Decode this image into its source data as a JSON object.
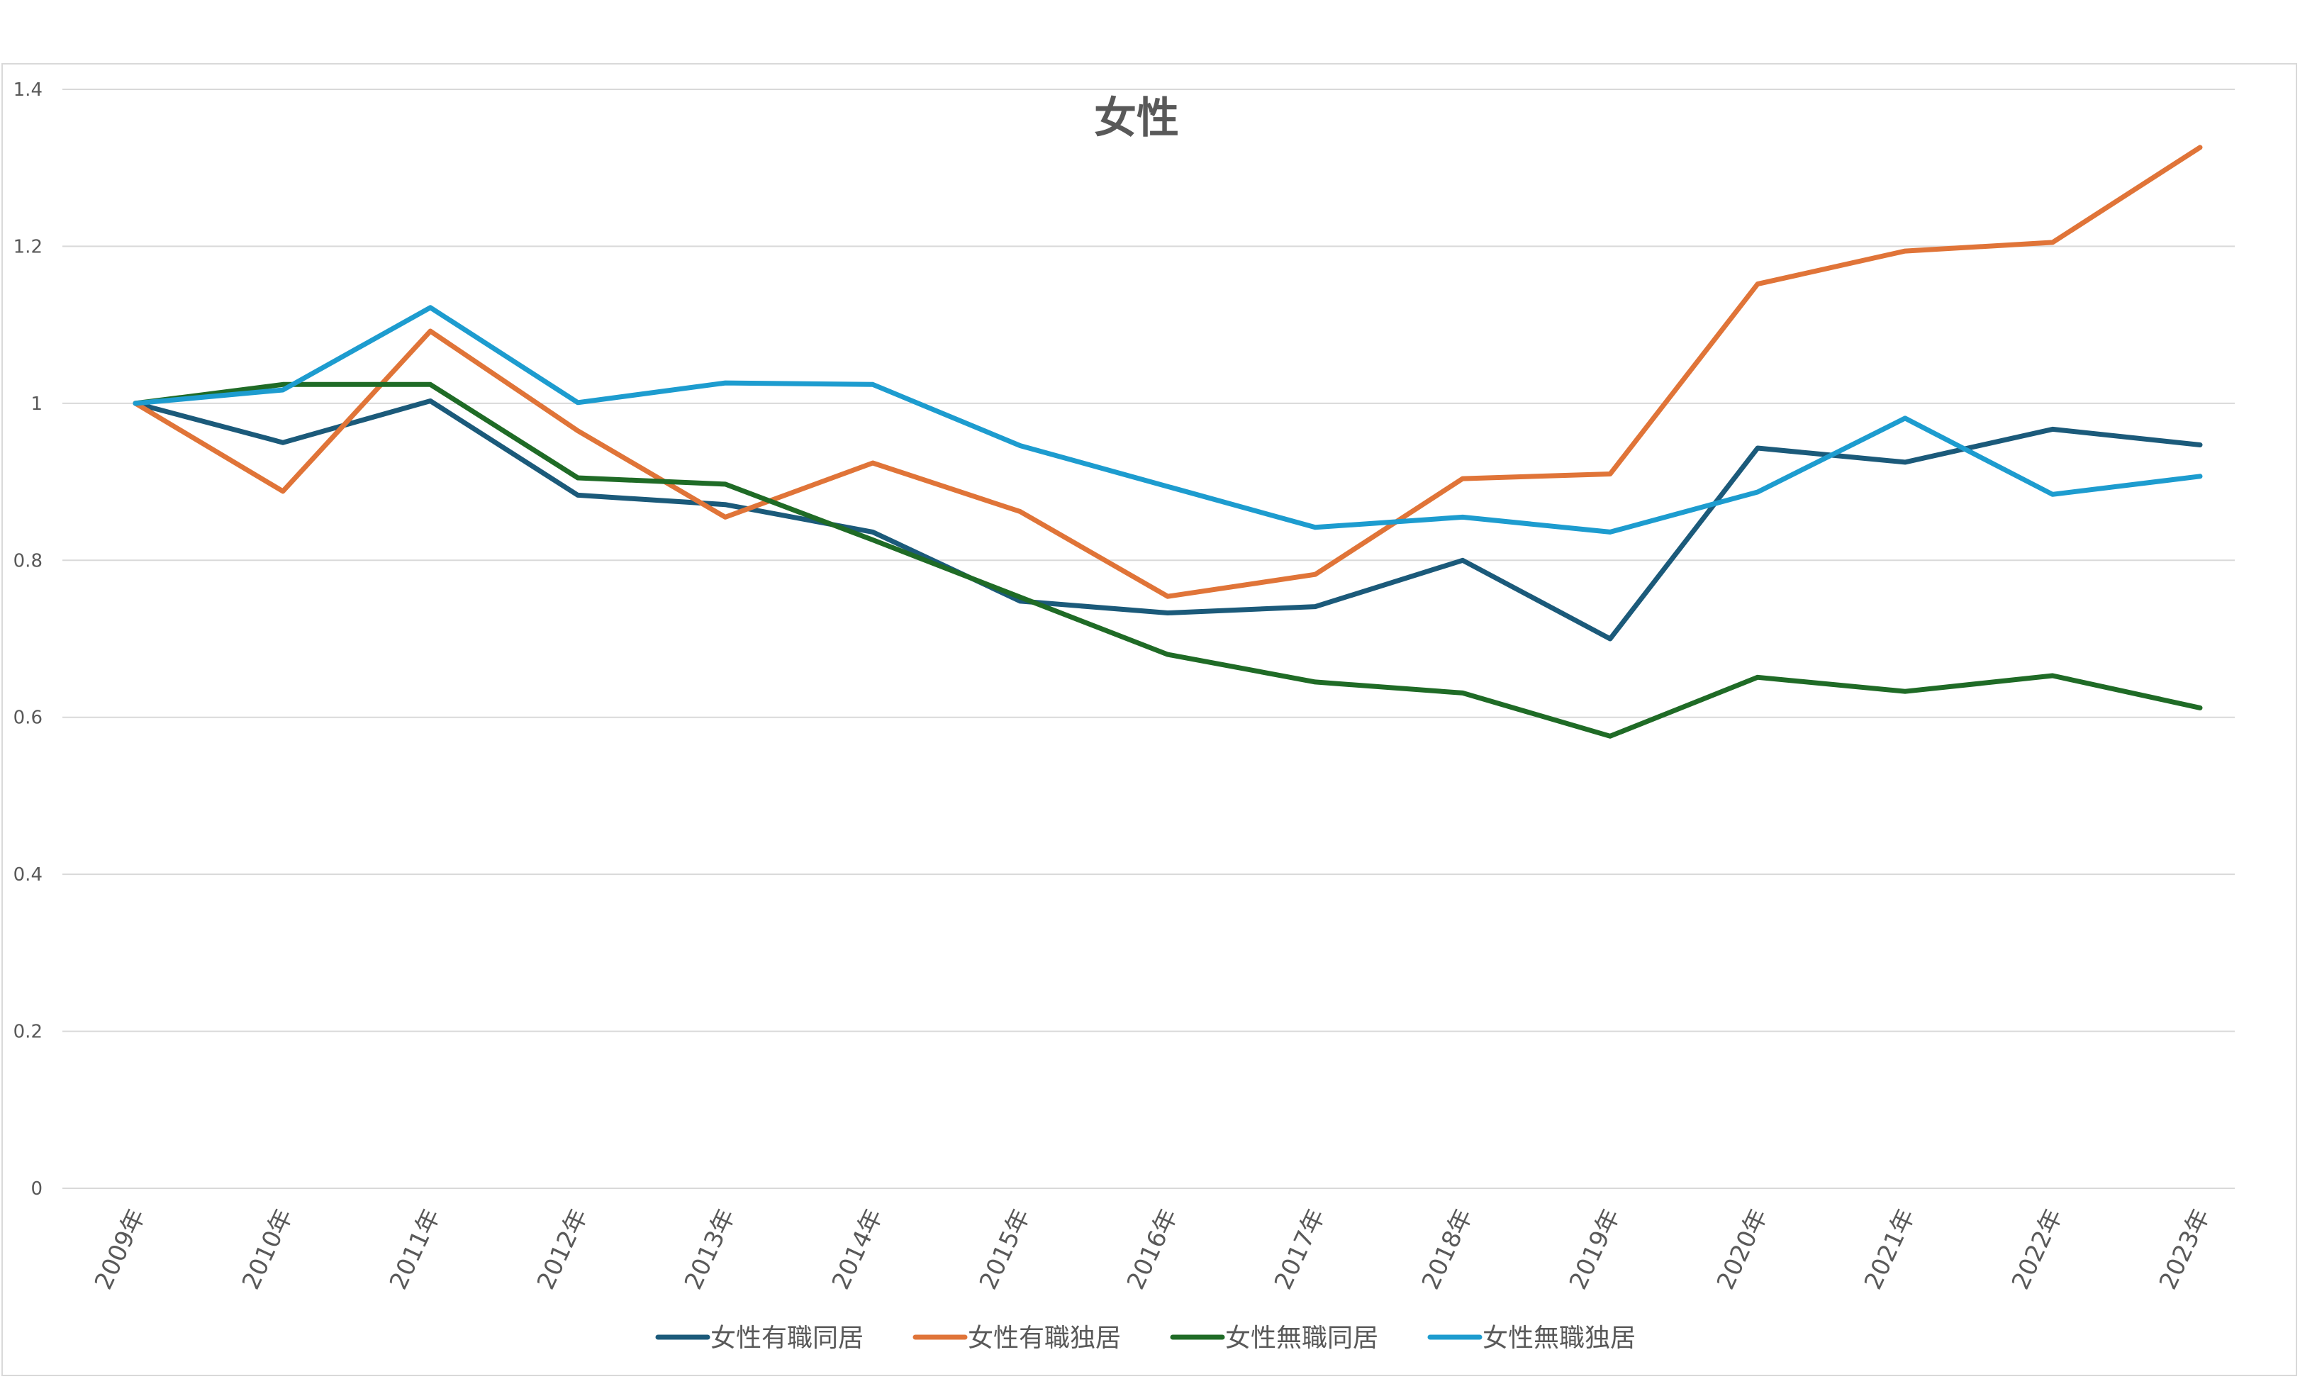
{
  "chart_data": {
    "type": "line",
    "title": "女性",
    "xlabel": "",
    "ylabel": "",
    "ylim": [
      0,
      1.4
    ],
    "y_ticks": [
      0,
      0.2,
      0.4,
      0.6,
      0.8,
      1,
      1.2,
      1.4
    ],
    "y_tick_labels": [
      "0",
      "0.2",
      "0.4",
      "0.6",
      "0.8",
      "1",
      "1.2",
      "1.4"
    ],
    "grid": true,
    "legend_position": "bottom",
    "categories": [
      "2009年",
      "2010年",
      "2011年",
      "2012年",
      "2013年",
      "2014年",
      "2015年",
      "2016年",
      "2017年",
      "2018年",
      "2019年",
      "2020年",
      "2021年",
      "2022年",
      "2023年"
    ],
    "series": [
      {
        "name": "女性有職同居",
        "color": "#1b5a7a",
        "values": [
          1.0,
          0.95,
          1.003,
          0.883,
          0.871,
          0.836,
          0.748,
          0.733,
          0.741,
          0.8,
          0.7,
          0.943,
          0.925,
          0.967,
          0.947
        ]
      },
      {
        "name": "女性有職独居",
        "color": "#e07438",
        "values": [
          1.0,
          0.888,
          1.092,
          0.965,
          0.855,
          0.924,
          0.862,
          0.754,
          0.782,
          0.904,
          0.91,
          1.152,
          1.194,
          1.205,
          1.326
        ]
      },
      {
        "name": "女性無職同居",
        "color": "#1f6b26",
        "values": [
          1.0,
          1.024,
          1.024,
          0.905,
          0.897,
          0.826,
          0.753,
          0.68,
          0.645,
          0.631,
          0.576,
          0.651,
          0.633,
          0.653,
          0.612
        ]
      },
      {
        "name": "女性無職独居",
        "color": "#1d9ccf",
        "values": [
          1.0,
          1.017,
          1.122,
          1.001,
          1.026,
          1.024,
          0.946,
          0.894,
          0.842,
          0.855,
          0.836,
          0.887,
          0.981,
          0.884,
          0.907
        ]
      }
    ]
  }
}
